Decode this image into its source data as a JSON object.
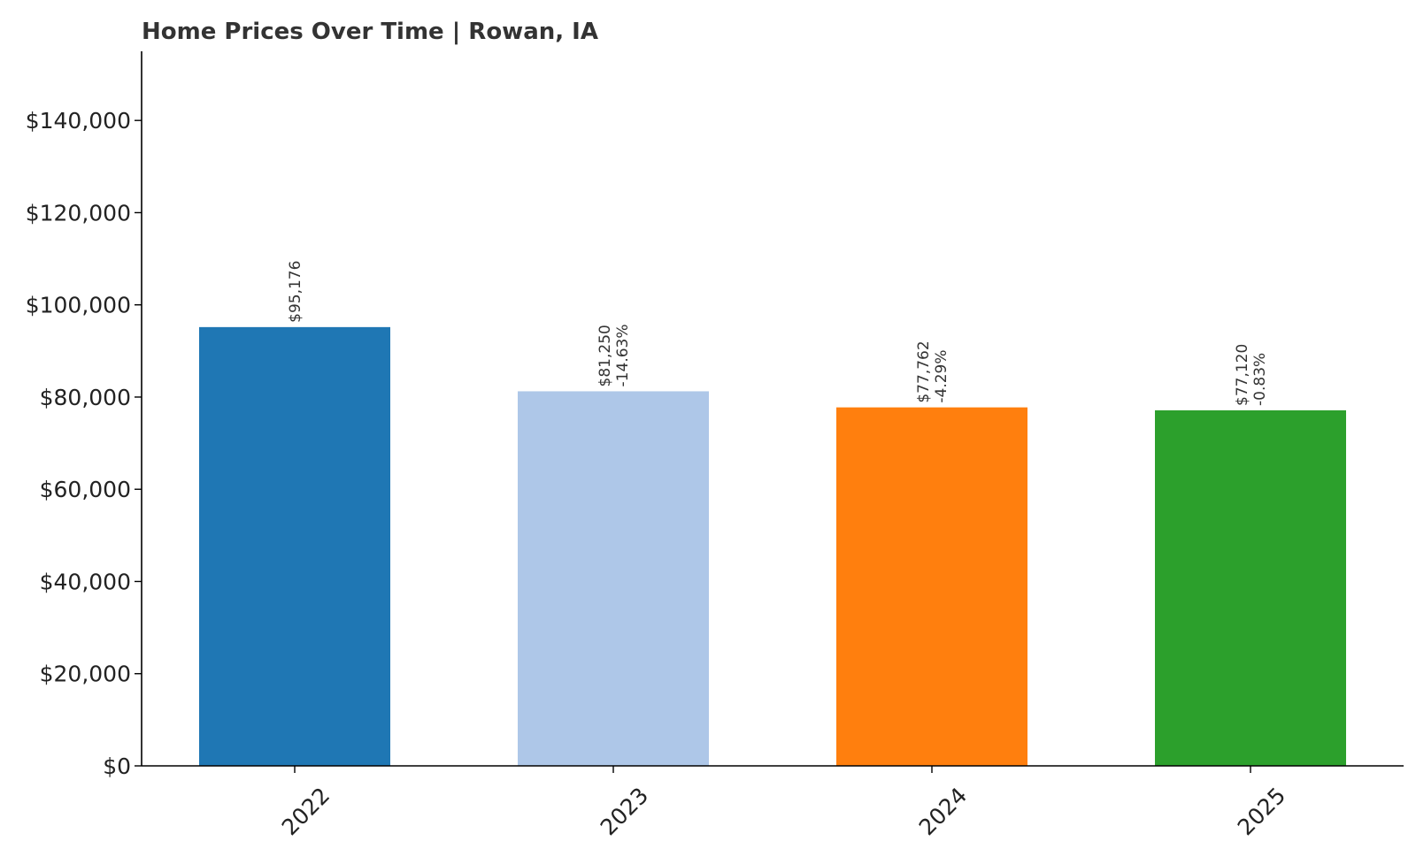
{
  "chart_data": {
    "type": "bar",
    "title": "Home Prices Over Time | Rowan, IA",
    "xlabel": "",
    "ylabel": "",
    "categories": [
      "2022",
      "2023",
      "2024",
      "2025"
    ],
    "values": [
      95176,
      81250,
      77762,
      77120
    ],
    "value_labels": [
      "$95,176",
      "$81,250",
      "$77,762",
      "$77,120"
    ],
    "change_labels": [
      "",
      "-14.63%",
      "-4.29%",
      "-0.83%"
    ],
    "colors": [
      "#1f77b4",
      "#aec7e8",
      "#ff7f0e",
      "#2ca02c"
    ],
    "ylim": [
      0,
      155000
    ],
    "yticks": [
      0,
      20000,
      40000,
      60000,
      80000,
      100000,
      120000,
      140000
    ],
    "ytick_labels": [
      "$0",
      "$20,000",
      "$40,000",
      "$60,000",
      "$80,000",
      "$100,000",
      "$120,000",
      "$140,000"
    ],
    "grid": false,
    "legend": "none"
  }
}
